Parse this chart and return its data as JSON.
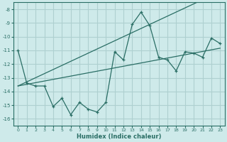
{
  "xlabel": "Humidex (Indice chaleur)",
  "x_values": [
    0,
    1,
    2,
    3,
    4,
    5,
    6,
    7,
    8,
    9,
    10,
    11,
    12,
    13,
    14,
    15,
    16,
    17,
    18,
    19,
    20,
    21,
    22,
    23
  ],
  "y_main": [
    -11.0,
    -13.4,
    -13.6,
    -13.6,
    -15.1,
    -14.5,
    -15.7,
    -14.8,
    -15.3,
    -15.5,
    -14.8,
    -11.1,
    -11.7,
    -9.1,
    -8.2,
    -9.2,
    -11.5,
    -11.7,
    -12.5,
    -11.1,
    -11.2,
    -11.5,
    -10.1,
    -10.5
  ],
  "y_trend1": [
    -13.6,
    -13.48,
    -13.36,
    -13.24,
    -13.12,
    -13.0,
    -12.88,
    -12.76,
    -12.64,
    -12.52,
    -12.4,
    -12.28,
    -12.16,
    -12.04,
    -11.92,
    -11.8,
    -11.68,
    -11.56,
    -11.44,
    -11.32,
    -11.2,
    -11.08,
    -10.96,
    -10.84
  ],
  "y_trend2": [
    -13.6,
    -13.3,
    -13.0,
    -12.7,
    -12.4,
    -12.1,
    -11.8,
    -11.5,
    -11.2,
    -10.9,
    -10.6,
    -10.3,
    -10.0,
    -9.7,
    -9.4,
    -9.1,
    -8.8,
    -8.5,
    -8.2,
    -7.9,
    -7.6,
    -7.3,
    -7.0,
    -6.7
  ],
  "line_color": "#2a6e65",
  "bg_color": "#ceeaea",
  "grid_color": "#aed0d0",
  "ylim": [
    -16.5,
    -7.5
  ],
  "xlim": [
    -0.5,
    23.5
  ],
  "yticks": [
    -16,
    -15,
    -14,
    -13,
    -12,
    -11,
    -10,
    -9,
    -8
  ],
  "xticks": [
    0,
    1,
    2,
    3,
    4,
    5,
    6,
    7,
    8,
    9,
    10,
    11,
    12,
    13,
    14,
    15,
    16,
    17,
    18,
    19,
    20,
    21,
    22,
    23
  ]
}
